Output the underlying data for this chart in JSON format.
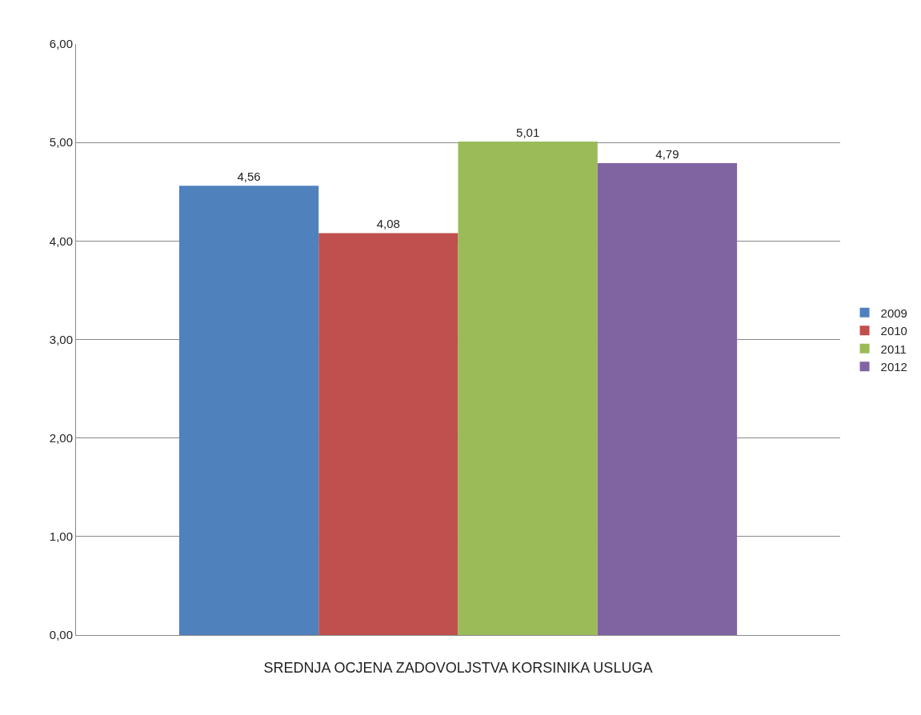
{
  "chart_data": {
    "type": "bar",
    "xlabel": "SREDNJA OCJENA ZADOVOLJSTVA KORSINIKA USLUGA",
    "categories": [
      null
    ],
    "series": [
      {
        "name": "2009",
        "color": "#4f81bd",
        "values": [
          4.56
        ],
        "value_labels": [
          "4,56"
        ]
      },
      {
        "name": "2010",
        "color": "#c0504d",
        "values": [
          4.08
        ],
        "value_labels": [
          "4,08"
        ]
      },
      {
        "name": "2011",
        "color": "#9bbb59",
        "values": [
          5.01
        ],
        "value_labels": [
          "5,01"
        ]
      },
      {
        "name": "2012",
        "color": "#8064a2",
        "values": [
          4.79
        ],
        "value_labels": [
          "4,79"
        ]
      }
    ],
    "ylim": [
      0,
      6
    ],
    "yticks": [
      {
        "value": 0,
        "label": "0,00"
      },
      {
        "value": 1,
        "label": "1,00"
      },
      {
        "value": 2,
        "label": "2,00"
      },
      {
        "value": 3,
        "label": "3,00"
      },
      {
        "value": 4,
        "label": "4,00"
      },
      {
        "value": 5,
        "label": "5,00"
      },
      {
        "value": 6,
        "label": "6,00"
      }
    ],
    "grid": "y",
    "legend": "right"
  }
}
